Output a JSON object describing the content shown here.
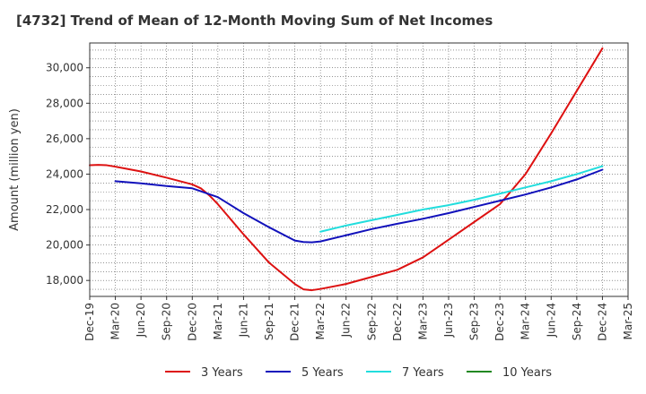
{
  "chart_data": {
    "type": "line",
    "title": "[4732]  Trend of Mean of 12-Month Moving Sum of Net Incomes",
    "xlabel": "",
    "ylabel": "Amount (million yen)",
    "ylim": [
      17100,
      31400
    ],
    "yticks": [
      18000,
      20000,
      22000,
      24000,
      26000,
      28000,
      30000
    ],
    "ytick_labels": [
      "18,000",
      "20,000",
      "22,000",
      "24,000",
      "26,000",
      "28,000",
      "30,000"
    ],
    "xticks": [
      "Dec-19",
      "Mar-20",
      "Jun-20",
      "Sep-20",
      "Dec-20",
      "Mar-21",
      "Jun-21",
      "Sep-21",
      "Dec-21",
      "Mar-22",
      "Jun-22",
      "Sep-22",
      "Dec-22",
      "Mar-23",
      "Jun-23",
      "Sep-23",
      "Dec-23",
      "Mar-24",
      "Jun-24",
      "Sep-24",
      "Dec-24",
      "Mar-25"
    ],
    "grid": true,
    "legend_position": "bottom",
    "series": [
      {
        "name": "3 Years",
        "color": "#dd1111",
        "x": [
          "Dec-19",
          "Jan-20",
          "Feb-20",
          "Mar-20",
          "Jun-20",
          "Sep-20",
          "Dec-20",
          "Jan-21",
          "Feb-21",
          "Mar-21",
          "Jun-21",
          "Sep-21",
          "Dec-21",
          "Jan-22",
          "Feb-22",
          "Mar-22",
          "Jun-22",
          "Sep-22",
          "Dec-22",
          "Mar-23",
          "Jun-23",
          "Sep-23",
          "Dec-23",
          "Mar-24",
          "Jun-24",
          "Sep-24",
          "Dec-24"
        ],
        "values": [
          24500,
          24520,
          24500,
          24420,
          24150,
          23800,
          23420,
          23200,
          22800,
          22300,
          20600,
          19000,
          17800,
          17500,
          17450,
          17520,
          17800,
          18200,
          18600,
          19300,
          20300,
          21300,
          22300,
          24000,
          26300,
          28700,
          31100
        ]
      },
      {
        "name": "5 Years",
        "color": "#1111bb",
        "x": [
          "Mar-20",
          "Jun-20",
          "Sep-20",
          "Dec-20",
          "Mar-21",
          "Jun-21",
          "Sep-21",
          "Dec-21",
          "Jan-22",
          "Feb-22",
          "Mar-22",
          "Jun-22",
          "Sep-22",
          "Dec-22",
          "Mar-23",
          "Jun-23",
          "Sep-23",
          "Dec-23",
          "Mar-24",
          "Jun-24",
          "Sep-24",
          "Dec-24"
        ],
        "values": [
          23600,
          23480,
          23330,
          23200,
          22700,
          21800,
          21000,
          20250,
          20170,
          20150,
          20200,
          20550,
          20900,
          21200,
          21480,
          21800,
          22150,
          22500,
          22850,
          23250,
          23700,
          24250
        ]
      },
      {
        "name": "7 Years",
        "color": "#22dddd",
        "x": [
          "Mar-22",
          "Jun-22",
          "Sep-22",
          "Dec-22",
          "Mar-23",
          "Jun-23",
          "Sep-23",
          "Dec-23",
          "Mar-24",
          "Jun-24",
          "Sep-24",
          "Dec-24"
        ],
        "values": [
          20750,
          21100,
          21400,
          21700,
          22000,
          22250,
          22550,
          22900,
          23250,
          23600,
          24000,
          24450
        ]
      },
      {
        "name": "10 Years",
        "color": "#228822",
        "x": [],
        "values": []
      }
    ]
  }
}
